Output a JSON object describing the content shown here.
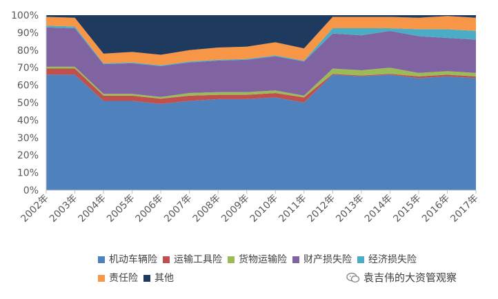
{
  "chart_data": {
    "type": "area",
    "stacked": true,
    "percent": true,
    "categories": [
      "2002年",
      "2003年",
      "2004年",
      "2005年",
      "2006年",
      "2007年",
      "2008年",
      "2009年",
      "2010年",
      "2011年",
      "2012年",
      "2013年",
      "2014年",
      "2015年",
      "2016年",
      "2017年"
    ],
    "y_ticks": [
      "0%",
      "10%",
      "20%",
      "30%",
      "40%",
      "50%",
      "60%",
      "70%",
      "80%",
      "90%",
      "100%"
    ],
    "ylim": [
      0,
      100
    ],
    "grid": false,
    "legend_position": "bottom",
    "series": [
      {
        "name": "机动车辆险",
        "color": "#4f81bd",
        "values": [
          66,
          66,
          51,
          51,
          49,
          51,
          52,
          52,
          53,
          50,
          66,
          65,
          66,
          64,
          65,
          64
        ]
      },
      {
        "name": "运输工具险",
        "color": "#c0504d",
        "values": [
          3.5,
          3.5,
          3,
          3,
          3,
          3,
          2.5,
          2.5,
          2.5,
          3,
          0.5,
          0.5,
          0.5,
          1,
          1,
          1
        ]
      },
      {
        "name": "货物运输险",
        "color": "#9bbb59",
        "values": [
          1,
          1,
          1,
          1,
          1,
          1.5,
          1.5,
          1.5,
          1.5,
          1,
          3,
          3,
          3.5,
          2,
          2,
          2
        ]
      },
      {
        "name": "财产损失险",
        "color": "#8064a2",
        "values": [
          22.5,
          22,
          17,
          17.5,
          17.5,
          17.5,
          18,
          18.5,
          19.5,
          19.5,
          20,
          20,
          21,
          21,
          19,
          19
        ]
      },
      {
        "name": "经济损失险",
        "color": "#4bacc6",
        "values": [
          1,
          1,
          0.5,
          0.5,
          0.5,
          0.5,
          0.5,
          0.5,
          0.5,
          0.5,
          3,
          4,
          1.5,
          4,
          5,
          5
        ]
      },
      {
        "name": "责任险",
        "color": "#f79646",
        "values": [
          5,
          5,
          5.5,
          6,
          6,
          6.5,
          7,
          7,
          7.5,
          7,
          6.5,
          6.5,
          6.5,
          6.5,
          7.5,
          7.5
        ]
      },
      {
        "name": "其他",
        "color": "#1f3a5f",
        "values": [
          1,
          1.5,
          22,
          21,
          22.5,
          20,
          18.5,
          18,
          15.5,
          19,
          1,
          1,
          1,
          1.5,
          0.5,
          1.5
        ]
      }
    ]
  },
  "watermark": {
    "text": "袁吉伟的大资管观察",
    "icon": "chat-bubble-icon"
  }
}
